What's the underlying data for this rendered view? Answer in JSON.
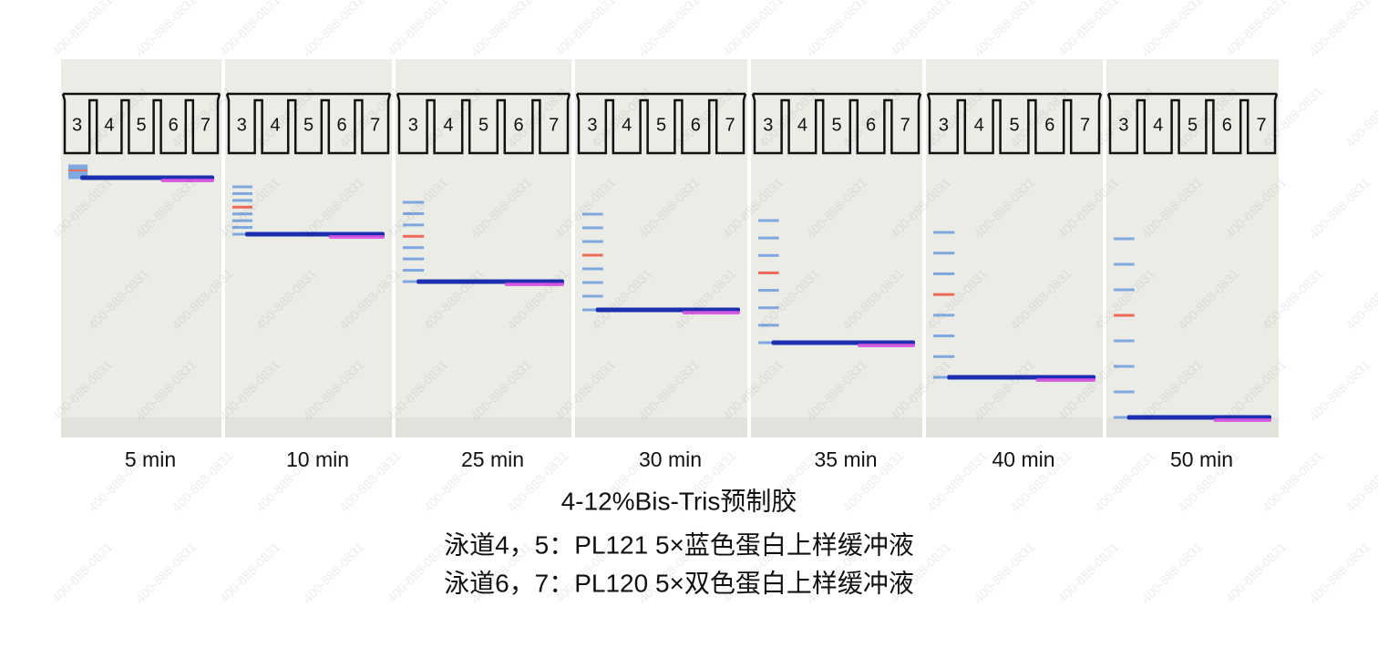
{
  "panels": [
    {
      "time": "5 min",
      "lanes": [
        "3",
        "4",
        "5",
        "6",
        "7"
      ]
    },
    {
      "time": "10 min",
      "lanes": [
        "3",
        "4",
        "5",
        "6",
        "7"
      ]
    },
    {
      "time": "25 min",
      "lanes": [
        "3",
        "4",
        "5",
        "6",
        "7"
      ]
    },
    {
      "time": "30 min",
      "lanes": [
        "3",
        "4",
        "5",
        "6",
        "7"
      ]
    },
    {
      "time": "35 min",
      "lanes": [
        "3",
        "4",
        "5",
        "6",
        "7"
      ]
    },
    {
      "time": "40 min",
      "lanes": [
        "3",
        "4",
        "5",
        "6",
        "7"
      ]
    },
    {
      "time": "50 min",
      "lanes": [
        "3",
        "4",
        "5",
        "6",
        "7"
      ]
    }
  ],
  "caption": [
    "4-12%Bis-Tris预制胶",
    "泳道4，5：PL121 5×蓝色蛋白上样缓冲液",
    "泳道6，7：PL120  5×双色蛋白上样缓冲液"
  ],
  "watermark": "400-888-0831"
}
